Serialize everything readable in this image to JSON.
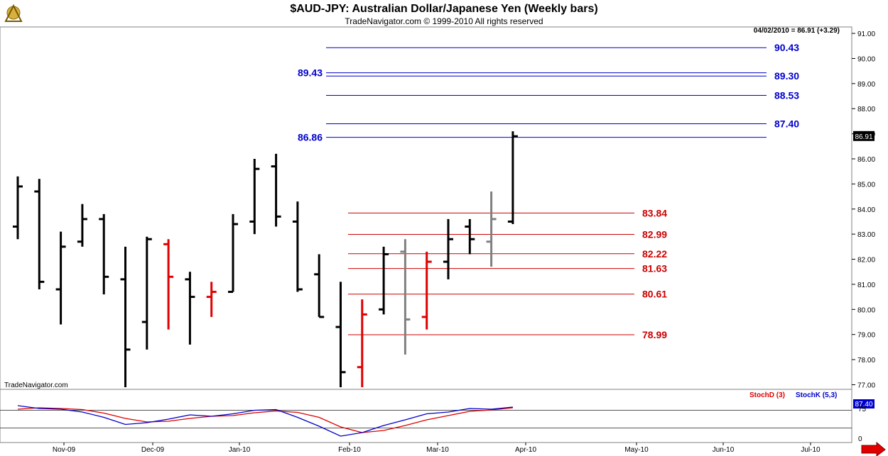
{
  "header": {
    "title": "$AUD-JPY:  Australian Dollar/Japanese Yen  (Weekly bars)",
    "subtitle": "TradeNavigator.com © 1999-2010 All rights reserved",
    "quote": "04/02/2010 = 86.91 (+3.29)",
    "watermark": "TradeNavigator.com"
  },
  "colors": {
    "up_bar": "#000000",
    "red_bar": "#e00000",
    "gray_bar": "#808080",
    "blue_level": "#0000cc",
    "red_level": "#cc0000",
    "stoch_d": "#dd0000",
    "stoch_k": "#0000cc"
  },
  "chart_data": {
    "type": "ohlc",
    "y_ticks": [
      77,
      78,
      79,
      80,
      81,
      82,
      83,
      84,
      85,
      86,
      87,
      88,
      89,
      90,
      91
    ],
    "y_tick_labels": [
      "77.00",
      "78.00",
      "79.00",
      "80.00",
      "81.00",
      "82.00",
      "83.00",
      "84.00",
      "85.00",
      "86.00",
      "87.00",
      "88.00",
      "89.00",
      "90.00",
      "91.00"
    ],
    "ylim": [
      76.9,
      91.2
    ],
    "last_price_label": "86.91",
    "x_labels": [
      "Nov-09",
      "Dec-09",
      "Jan-10",
      "Feb-10",
      "Mar-10",
      "Apr-10",
      "May-10",
      "Jun-10",
      "Jul-10"
    ],
    "bars": [
      {
        "o": 83.3,
        "h": 85.3,
        "l": 82.8,
        "c": 84.9,
        "color": "black"
      },
      {
        "o": 84.7,
        "h": 85.2,
        "l": 80.8,
        "c": 81.1,
        "color": "black"
      },
      {
        "o": 80.8,
        "h": 83.1,
        "l": 79.4,
        "c": 82.5,
        "color": "black"
      },
      {
        "o": 82.7,
        "h": 84.2,
        "l": 82.5,
        "c": 83.6,
        "color": "black"
      },
      {
        "o": 83.6,
        "h": 83.8,
        "l": 80.6,
        "c": 81.3,
        "color": "black"
      },
      {
        "o": 81.2,
        "h": 82.5,
        "l": 76.9,
        "c": 78.4,
        "color": "black"
      },
      {
        "o": 79.5,
        "h": 82.9,
        "l": 78.4,
        "c": 82.8,
        "color": "black"
      },
      {
        "o": 82.6,
        "h": 82.8,
        "l": 79.2,
        "c": 81.3,
        "color": "red"
      },
      {
        "o": 81.2,
        "h": 81.5,
        "l": 78.6,
        "c": 80.5,
        "color": "black"
      },
      {
        "o": 80.5,
        "h": 81.1,
        "l": 79.7,
        "c": 80.7,
        "color": "red"
      },
      {
        "o": 80.7,
        "h": 83.8,
        "l": 80.7,
        "c": 83.4,
        "color": "black"
      },
      {
        "o": 83.5,
        "h": 86.0,
        "l": 83.0,
        "c": 85.6,
        "color": "black"
      },
      {
        "o": 85.7,
        "h": 86.2,
        "l": 83.3,
        "c": 83.7,
        "color": "black"
      },
      {
        "o": 83.5,
        "h": 84.3,
        "l": 80.7,
        "c": 80.8,
        "color": "black"
      },
      {
        "o": 81.4,
        "h": 82.2,
        "l": 79.7,
        "c": 79.7,
        "color": "black"
      },
      {
        "o": 79.3,
        "h": 81.1,
        "l": 76.9,
        "c": 77.5,
        "color": "black"
      },
      {
        "o": 77.7,
        "h": 80.4,
        "l": 76.9,
        "c": 79.8,
        "color": "red"
      },
      {
        "o": 80.0,
        "h": 82.5,
        "l": 79.8,
        "c": 82.2,
        "color": "black"
      },
      {
        "o": 82.3,
        "h": 82.8,
        "l": 78.2,
        "c": 79.6,
        "color": "gray"
      },
      {
        "o": 79.7,
        "h": 82.3,
        "l": 79.2,
        "c": 81.9,
        "color": "red"
      },
      {
        "o": 81.9,
        "h": 83.6,
        "l": 81.2,
        "c": 82.8,
        "color": "black"
      },
      {
        "o": 83.3,
        "h": 83.6,
        "l": 82.2,
        "c": 82.8,
        "color": "black"
      },
      {
        "o": 82.7,
        "h": 84.7,
        "l": 81.7,
        "c": 83.6,
        "color": "gray"
      },
      {
        "o": 83.5,
        "h": 87.1,
        "l": 83.4,
        "c": 86.9,
        "color": "black"
      }
    ],
    "levels_blue": [
      {
        "value": 90.43,
        "label": "90.43",
        "side": "right"
      },
      {
        "value": 89.3,
        "label": "89.30",
        "side": "right"
      },
      {
        "value": 89.43,
        "label": "89.43",
        "side": "left"
      },
      {
        "value": 88.53,
        "label": "88.53",
        "side": "right"
      },
      {
        "value": 87.4,
        "label": "87.40",
        "side": "right"
      },
      {
        "value": 86.86,
        "label": "86.86",
        "side": "left"
      }
    ],
    "levels_red": [
      {
        "value": 83.84,
        "label": "83.84"
      },
      {
        "value": 82.99,
        "label": "82.99"
      },
      {
        "value": 82.22,
        "label": "82.22"
      },
      {
        "value": 81.63,
        "label": "81.63"
      },
      {
        "value": 80.61,
        "label": "80.61"
      },
      {
        "value": 78.99,
        "label": "78.99"
      }
    ],
    "stochastic": {
      "legend_d": "StochD (3)",
      "legend_k": "StochK (5,3)",
      "value_label": "87.40",
      "tick_75": "75",
      "tick_0": "0",
      "k": [
        88,
        80,
        78,
        70,
        55,
        35,
        40,
        50,
        62,
        58,
        65,
        75,
        77,
        55,
        30,
        2,
        12,
        32,
        48,
        65,
        70,
        80,
        78,
        84
      ],
      "d": [
        78,
        82,
        80,
        77,
        67,
        52,
        42,
        44,
        52,
        58,
        60,
        68,
        73,
        69,
        55,
        28,
        12,
        18,
        32,
        48,
        60,
        72,
        76,
        82
      ]
    }
  }
}
